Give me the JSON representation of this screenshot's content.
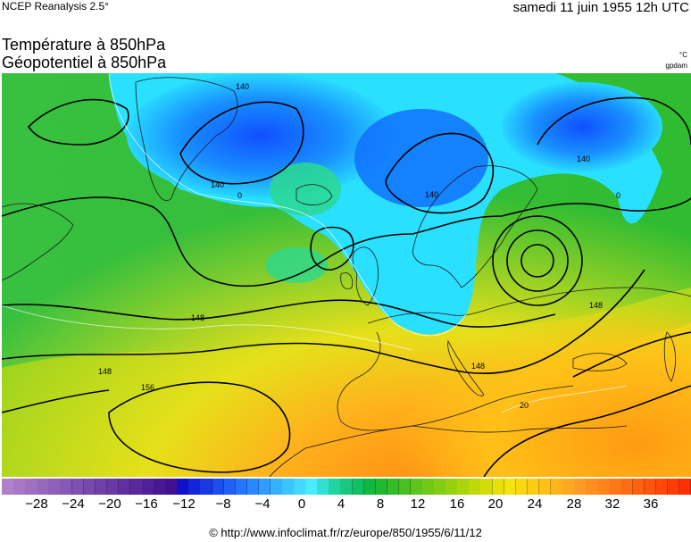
{
  "header": {
    "source": "NCEP Reanalysis 2.5°",
    "date": "samedi 11 juin 1955 12h UTC",
    "title_line1": "Température à 850hPa",
    "title_line2": "Géopotentiel à 850hPa",
    "unit_temperature": "°C",
    "unit_geopotential": "gpdam"
  },
  "map": {
    "contour_labels": [
      "140",
      "140",
      "140",
      "140",
      "148",
      "148",
      "148",
      "156",
      "148",
      "0",
      "0",
      "20"
    ],
    "temperature_colors": {
      "cold": "#1a4fff",
      "cyan": "#1ae6ff",
      "green": "#2bc02b",
      "yellow": "#f0e21a",
      "orange": "#ff9a10"
    }
  },
  "legend": {
    "ticks": [
      "−28",
      "−24",
      "−20",
      "−16",
      "−12",
      "−8",
      "−4",
      "0",
      "4",
      "8",
      "12",
      "16",
      "20",
      "24",
      "28",
      "32",
      "36"
    ],
    "colors": [
      "#b080c8",
      "#a878c4",
      "#a070c0",
      "#9868bc",
      "#9060b8",
      "#8858b4",
      "#8050b0",
      "#7848ac",
      "#7040a8",
      "#6838a4",
      "#6030a0",
      "#58289c",
      "#502098",
      "#481894",
      "#401090",
      "#1010c8",
      "#1424d8",
      "#1838e4",
      "#1c4cee",
      "#2060f6",
      "#2474fc",
      "#2a88ff",
      "#309cff",
      "#36b0ff",
      "#3cc4ff",
      "#42d8ff",
      "#48ecff",
      "#30e0d0",
      "#20d4a0",
      "#18c880",
      "#10c060",
      "#10b840",
      "#20b830",
      "#34bc28",
      "#48c020",
      "#5cc41c",
      "#70c818",
      "#84cc14",
      "#98d010",
      "#acd40c",
      "#c0d808",
      "#d4dc08",
      "#e8e008",
      "#f4e40c",
      "#f8d810",
      "#fccc14",
      "#ffc018",
      "#ffb41c",
      "#ffa820",
      "#ff9c24",
      "#ff9020",
      "#ff841c",
      "#ff7818",
      "#ff6c14",
      "#ff6010",
      "#ff540c",
      "#ff4808",
      "#ff3c04",
      "#ff3000"
    ]
  },
  "footer": {
    "copyright": "© http://www.infoclimat.fr/rz/europe/850/1955/6/11/12"
  }
}
